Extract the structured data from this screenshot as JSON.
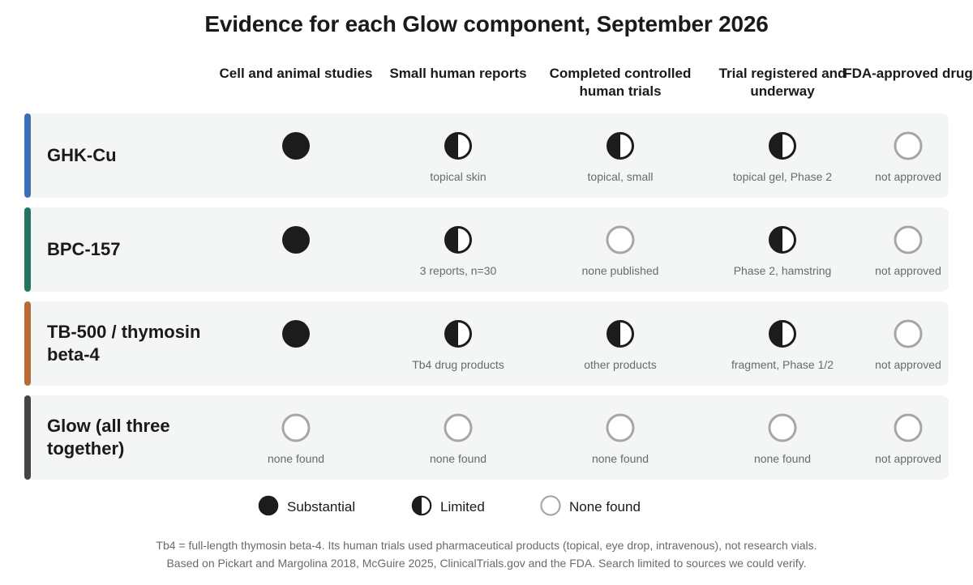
{
  "title": "Evidence for each Glow component, September 2026",
  "chart_data": {
    "type": "table",
    "columns": [
      "Cell and animal studies",
      "Small human reports",
      "Completed controlled human trials",
      "Trial registered and underway",
      "FDA-approved drug"
    ],
    "rows": [
      {
        "label": "GHK-Cu",
        "color": "#3b6fb6",
        "cells": [
          {
            "level": "substantial",
            "note": ""
          },
          {
            "level": "limited",
            "note": "topical skin"
          },
          {
            "level": "limited",
            "note": "topical, small"
          },
          {
            "level": "limited",
            "note": "topical gel, Phase 2"
          },
          {
            "level": "none",
            "note": "not approved"
          }
        ]
      },
      {
        "label": "BPC-157",
        "color": "#237561",
        "cells": [
          {
            "level": "substantial",
            "note": ""
          },
          {
            "level": "limited",
            "note": "3 reports, n=30"
          },
          {
            "level": "none",
            "note": "none published"
          },
          {
            "level": "limited",
            "note": "Phase 2, hamstring"
          },
          {
            "level": "none",
            "note": "not approved"
          }
        ]
      },
      {
        "label": "TB-500 / thymosin beta-4",
        "color": "#b86a34",
        "cells": [
          {
            "level": "substantial",
            "note": ""
          },
          {
            "level": "limited",
            "note": "Tb4 drug products"
          },
          {
            "level": "limited",
            "note": "other products"
          },
          {
            "level": "limited",
            "note": "fragment, Phase 1/2"
          },
          {
            "level": "none",
            "note": "not approved"
          }
        ]
      },
      {
        "label": "Glow (all three together)",
        "color": "#454545",
        "cells": [
          {
            "level": "none",
            "note": "none found"
          },
          {
            "level": "none",
            "note": "none found"
          },
          {
            "level": "none",
            "note": "none found"
          },
          {
            "level": "none",
            "note": "none found"
          },
          {
            "level": "none",
            "note": "not approved"
          }
        ]
      }
    ],
    "legend": [
      {
        "level": "substantial",
        "label": "Substantial"
      },
      {
        "level": "limited",
        "label": "Limited"
      },
      {
        "level": "none",
        "label": "None found"
      }
    ]
  },
  "footnotes": [
    "Tb4 = full-length thymosin beta-4. Its human trials used pharmaceutical products (topical, eye drop, intravenous), not research vials.",
    "Based on Pickart and Margolina 2018, McGuire 2025, ClinicalTrials.gov and the FDA. Search limited to sources we could verify."
  ]
}
